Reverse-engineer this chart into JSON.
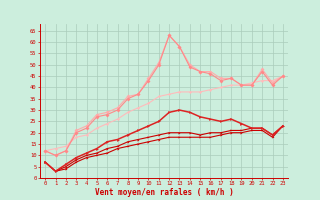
{
  "x": [
    0,
    1,
    2,
    3,
    4,
    5,
    6,
    7,
    8,
    9,
    10,
    11,
    12,
    13,
    14,
    15,
    16,
    17,
    18,
    19,
    20,
    21,
    22,
    23
  ],
  "line_red1": [
    7,
    3,
    4,
    7,
    9,
    10,
    11,
    13,
    14,
    15,
    16,
    17,
    18,
    18,
    18,
    18,
    18,
    19,
    20,
    20,
    21,
    21,
    18,
    23
  ],
  "line_red2": [
    7,
    3,
    5,
    8,
    10,
    11,
    13,
    14,
    16,
    17,
    18,
    19,
    20,
    20,
    20,
    19,
    20,
    20,
    21,
    21,
    22,
    22,
    19,
    23
  ],
  "line_red3": [
    7,
    3,
    6,
    9,
    11,
    13,
    16,
    17,
    19,
    21,
    23,
    25,
    29,
    30,
    29,
    27,
    26,
    25,
    26,
    24,
    22,
    22,
    19,
    23
  ],
  "line_pink1": [
    12,
    10,
    12,
    20,
    22,
    27,
    28,
    30,
    35,
    37,
    43,
    50,
    63,
    58,
    49,
    47,
    46,
    43,
    44,
    41,
    41,
    47,
    41,
    45
  ],
  "line_pink2": [
    12,
    10,
    12,
    21,
    23,
    28,
    29,
    31,
    36,
    37,
    44,
    51,
    63,
    58,
    50,
    47,
    47,
    44,
    44,
    41,
    41,
    48,
    42,
    45
  ],
  "line_straight": [
    12,
    13,
    14,
    18,
    19,
    22,
    24,
    26,
    29,
    31,
    33,
    36,
    37,
    38,
    38,
    38,
    39,
    40,
    41,
    41,
    42,
    43,
    43,
    45
  ],
  "arrows": [
    "↘",
    "↗",
    "↑",
    "↑",
    "↗",
    "↑",
    "↗",
    "↑",
    "↗",
    "↑",
    "↗",
    "↑",
    "↗",
    "↗",
    "↗",
    "→",
    "→",
    "→",
    "→",
    "→",
    "↗",
    "↗",
    "↗",
    "↗"
  ],
  "color_darkred": "#cc0000",
  "color_medred": "#dd2222",
  "color_pink1": "#ff8888",
  "color_pink2": "#ffaaaa",
  "color_straight": "#ffbbbb",
  "bg_color": "#cceedd",
  "grid_color": "#aaccbb",
  "xlabel": "Vent moyen/en rafales ( km/h )",
  "yticks": [
    0,
    5,
    10,
    15,
    20,
    25,
    30,
    35,
    40,
    45,
    50,
    55,
    60,
    65
  ],
  "ylim": [
    0,
    68
  ],
  "xlim": [
    -0.5,
    23.5
  ]
}
